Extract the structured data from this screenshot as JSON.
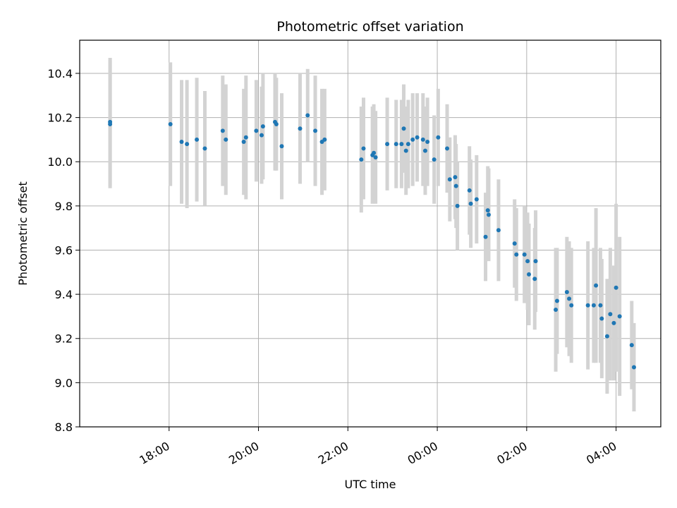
{
  "chart_data": {
    "type": "scatter",
    "title": "Photometric offset variation",
    "xlabel": "UTC time",
    "ylabel": "Photometric offset",
    "x_unit": "hours since 00:00 UTC",
    "xlim": [
      -8.0,
      5.0
    ],
    "ylim": [
      8.8,
      10.55
    ],
    "x_ticks": [
      -6,
      -4,
      -2,
      0,
      2,
      4
    ],
    "x_tick_labels": [
      "18:00",
      "20:00",
      "22:00",
      "00:00",
      "02:00",
      "04:00"
    ],
    "y_ticks": [
      8.8,
      9.0,
      9.2,
      9.4,
      9.6,
      9.8,
      10.0,
      10.2,
      10.4
    ],
    "y_tick_labels": [
      "8.8",
      "9.0",
      "9.2",
      "9.4",
      "9.6",
      "9.8",
      "10.0",
      "10.2",
      "10.4"
    ],
    "grid": true,
    "marker_color": "#1f77b4",
    "errorbar_color": "#d3d3d3",
    "points": [
      {
        "x": -7.32,
        "y": 10.18,
        "err": 0.29
      },
      {
        "x": -7.32,
        "y": 10.17,
        "err": 0.29
      },
      {
        "x": -5.97,
        "y": 10.17,
        "err": 0.28
      },
      {
        "x": -5.72,
        "y": 10.09,
        "err": 0.28
      },
      {
        "x": -5.6,
        "y": 10.08,
        "err": 0.29
      },
      {
        "x": -5.38,
        "y": 10.1,
        "err": 0.28
      },
      {
        "x": -5.2,
        "y": 10.06,
        "err": 0.26
      },
      {
        "x": -4.8,
        "y": 10.14,
        "err": 0.25
      },
      {
        "x": -4.73,
        "y": 10.1,
        "err": 0.25
      },
      {
        "x": -4.33,
        "y": 10.09,
        "err": 0.24
      },
      {
        "x": -4.28,
        "y": 10.11,
        "err": 0.28
      },
      {
        "x": -4.05,
        "y": 10.14,
        "err": 0.23
      },
      {
        "x": -3.93,
        "y": 10.12,
        "err": 0.22
      },
      {
        "x": -3.9,
        "y": 10.16,
        "err": 0.24
      },
      {
        "x": -3.63,
        "y": 10.18,
        "err": 0.22
      },
      {
        "x": -3.6,
        "y": 10.17,
        "err": 0.21
      },
      {
        "x": -3.48,
        "y": 10.07,
        "err": 0.24
      },
      {
        "x": -3.07,
        "y": 10.15,
        "err": 0.25
      },
      {
        "x": -2.9,
        "y": 10.21,
        "err": 0.21
      },
      {
        "x": -2.73,
        "y": 10.14,
        "err": 0.25
      },
      {
        "x": -2.58,
        "y": 10.09,
        "err": 0.24
      },
      {
        "x": -2.52,
        "y": 10.1,
        "err": 0.23
      },
      {
        "x": -1.7,
        "y": 10.01,
        "err": 0.24
      },
      {
        "x": -1.65,
        "y": 10.06,
        "err": 0.23
      },
      {
        "x": -1.45,
        "y": 10.03,
        "err": 0.22
      },
      {
        "x": -1.42,
        "y": 10.04,
        "err": 0.22
      },
      {
        "x": -1.38,
        "y": 10.02,
        "err": 0.21
      },
      {
        "x": -1.12,
        "y": 10.08,
        "err": 0.21
      },
      {
        "x": -0.92,
        "y": 10.08,
        "err": 0.2
      },
      {
        "x": -0.8,
        "y": 10.08,
        "err": 0.2
      },
      {
        "x": -0.75,
        "y": 10.15,
        "err": 0.2
      },
      {
        "x": -0.7,
        "y": 10.05,
        "err": 0.2
      },
      {
        "x": -0.65,
        "y": 10.08,
        "err": 0.2
      },
      {
        "x": -0.55,
        "y": 10.1,
        "err": 0.21
      },
      {
        "x": -0.45,
        "y": 10.11,
        "err": 0.2
      },
      {
        "x": -0.32,
        "y": 10.1,
        "err": 0.21
      },
      {
        "x": -0.27,
        "y": 10.05,
        "err": 0.2
      },
      {
        "x": -0.22,
        "y": 10.09,
        "err": 0.2
      },
      {
        "x": -0.07,
        "y": 10.01,
        "err": 0.2
      },
      {
        "x": 0.02,
        "y": 10.11,
        "err": 0.22
      },
      {
        "x": 0.22,
        "y": 10.06,
        "err": 0.2
      },
      {
        "x": 0.28,
        "y": 9.92,
        "err": 0.19
      },
      {
        "x": 0.4,
        "y": 9.93,
        "err": 0.19
      },
      {
        "x": 0.42,
        "y": 9.89,
        "err": 0.19
      },
      {
        "x": 0.45,
        "y": 9.8,
        "err": 0.2
      },
      {
        "x": 0.72,
        "y": 9.87,
        "err": 0.2
      },
      {
        "x": 0.75,
        "y": 9.81,
        "err": 0.2
      },
      {
        "x": 0.88,
        "y": 9.83,
        "err": 0.2
      },
      {
        "x": 1.08,
        "y": 9.66,
        "err": 0.2
      },
      {
        "x": 1.13,
        "y": 9.78,
        "err": 0.2
      },
      {
        "x": 1.15,
        "y": 9.76,
        "err": 0.21
      },
      {
        "x": 1.37,
        "y": 9.69,
        "err": 0.23
      },
      {
        "x": 1.73,
        "y": 9.63,
        "err": 0.2
      },
      {
        "x": 1.77,
        "y": 9.58,
        "err": 0.21
      },
      {
        "x": 1.95,
        "y": 9.58,
        "err": 0.22
      },
      {
        "x": 2.02,
        "y": 9.55,
        "err": 0.22
      },
      {
        "x": 2.05,
        "y": 9.49,
        "err": 0.23
      },
      {
        "x": 2.18,
        "y": 9.47,
        "err": 0.23
      },
      {
        "x": 2.2,
        "y": 9.55,
        "err": 0.23
      },
      {
        "x": 2.65,
        "y": 9.33,
        "err": 0.28
      },
      {
        "x": 2.68,
        "y": 9.37,
        "err": 0.24
      },
      {
        "x": 2.9,
        "y": 9.41,
        "err": 0.25
      },
      {
        "x": 2.95,
        "y": 9.38,
        "err": 0.26
      },
      {
        "x": 3.0,
        "y": 9.35,
        "err": 0.26
      },
      {
        "x": 3.37,
        "y": 9.35,
        "err": 0.29
      },
      {
        "x": 3.5,
        "y": 9.35,
        "err": 0.26
      },
      {
        "x": 3.55,
        "y": 9.44,
        "err": 0.35
      },
      {
        "x": 3.65,
        "y": 9.35,
        "err": 0.26
      },
      {
        "x": 3.68,
        "y": 9.29,
        "err": 0.27
      },
      {
        "x": 3.8,
        "y": 9.21,
        "err": 0.26
      },
      {
        "x": 3.87,
        "y": 9.31,
        "err": 0.3
      },
      {
        "x": 3.95,
        "y": 9.27,
        "err": 0.26
      },
      {
        "x": 4.0,
        "y": 9.43,
        "err": 0.38
      },
      {
        "x": 4.08,
        "y": 9.3,
        "err": 0.36
      },
      {
        "x": 4.35,
        "y": 9.17,
        "err": 0.2
      },
      {
        "x": 4.4,
        "y": 9.07,
        "err": 0.2
      }
    ]
  }
}
